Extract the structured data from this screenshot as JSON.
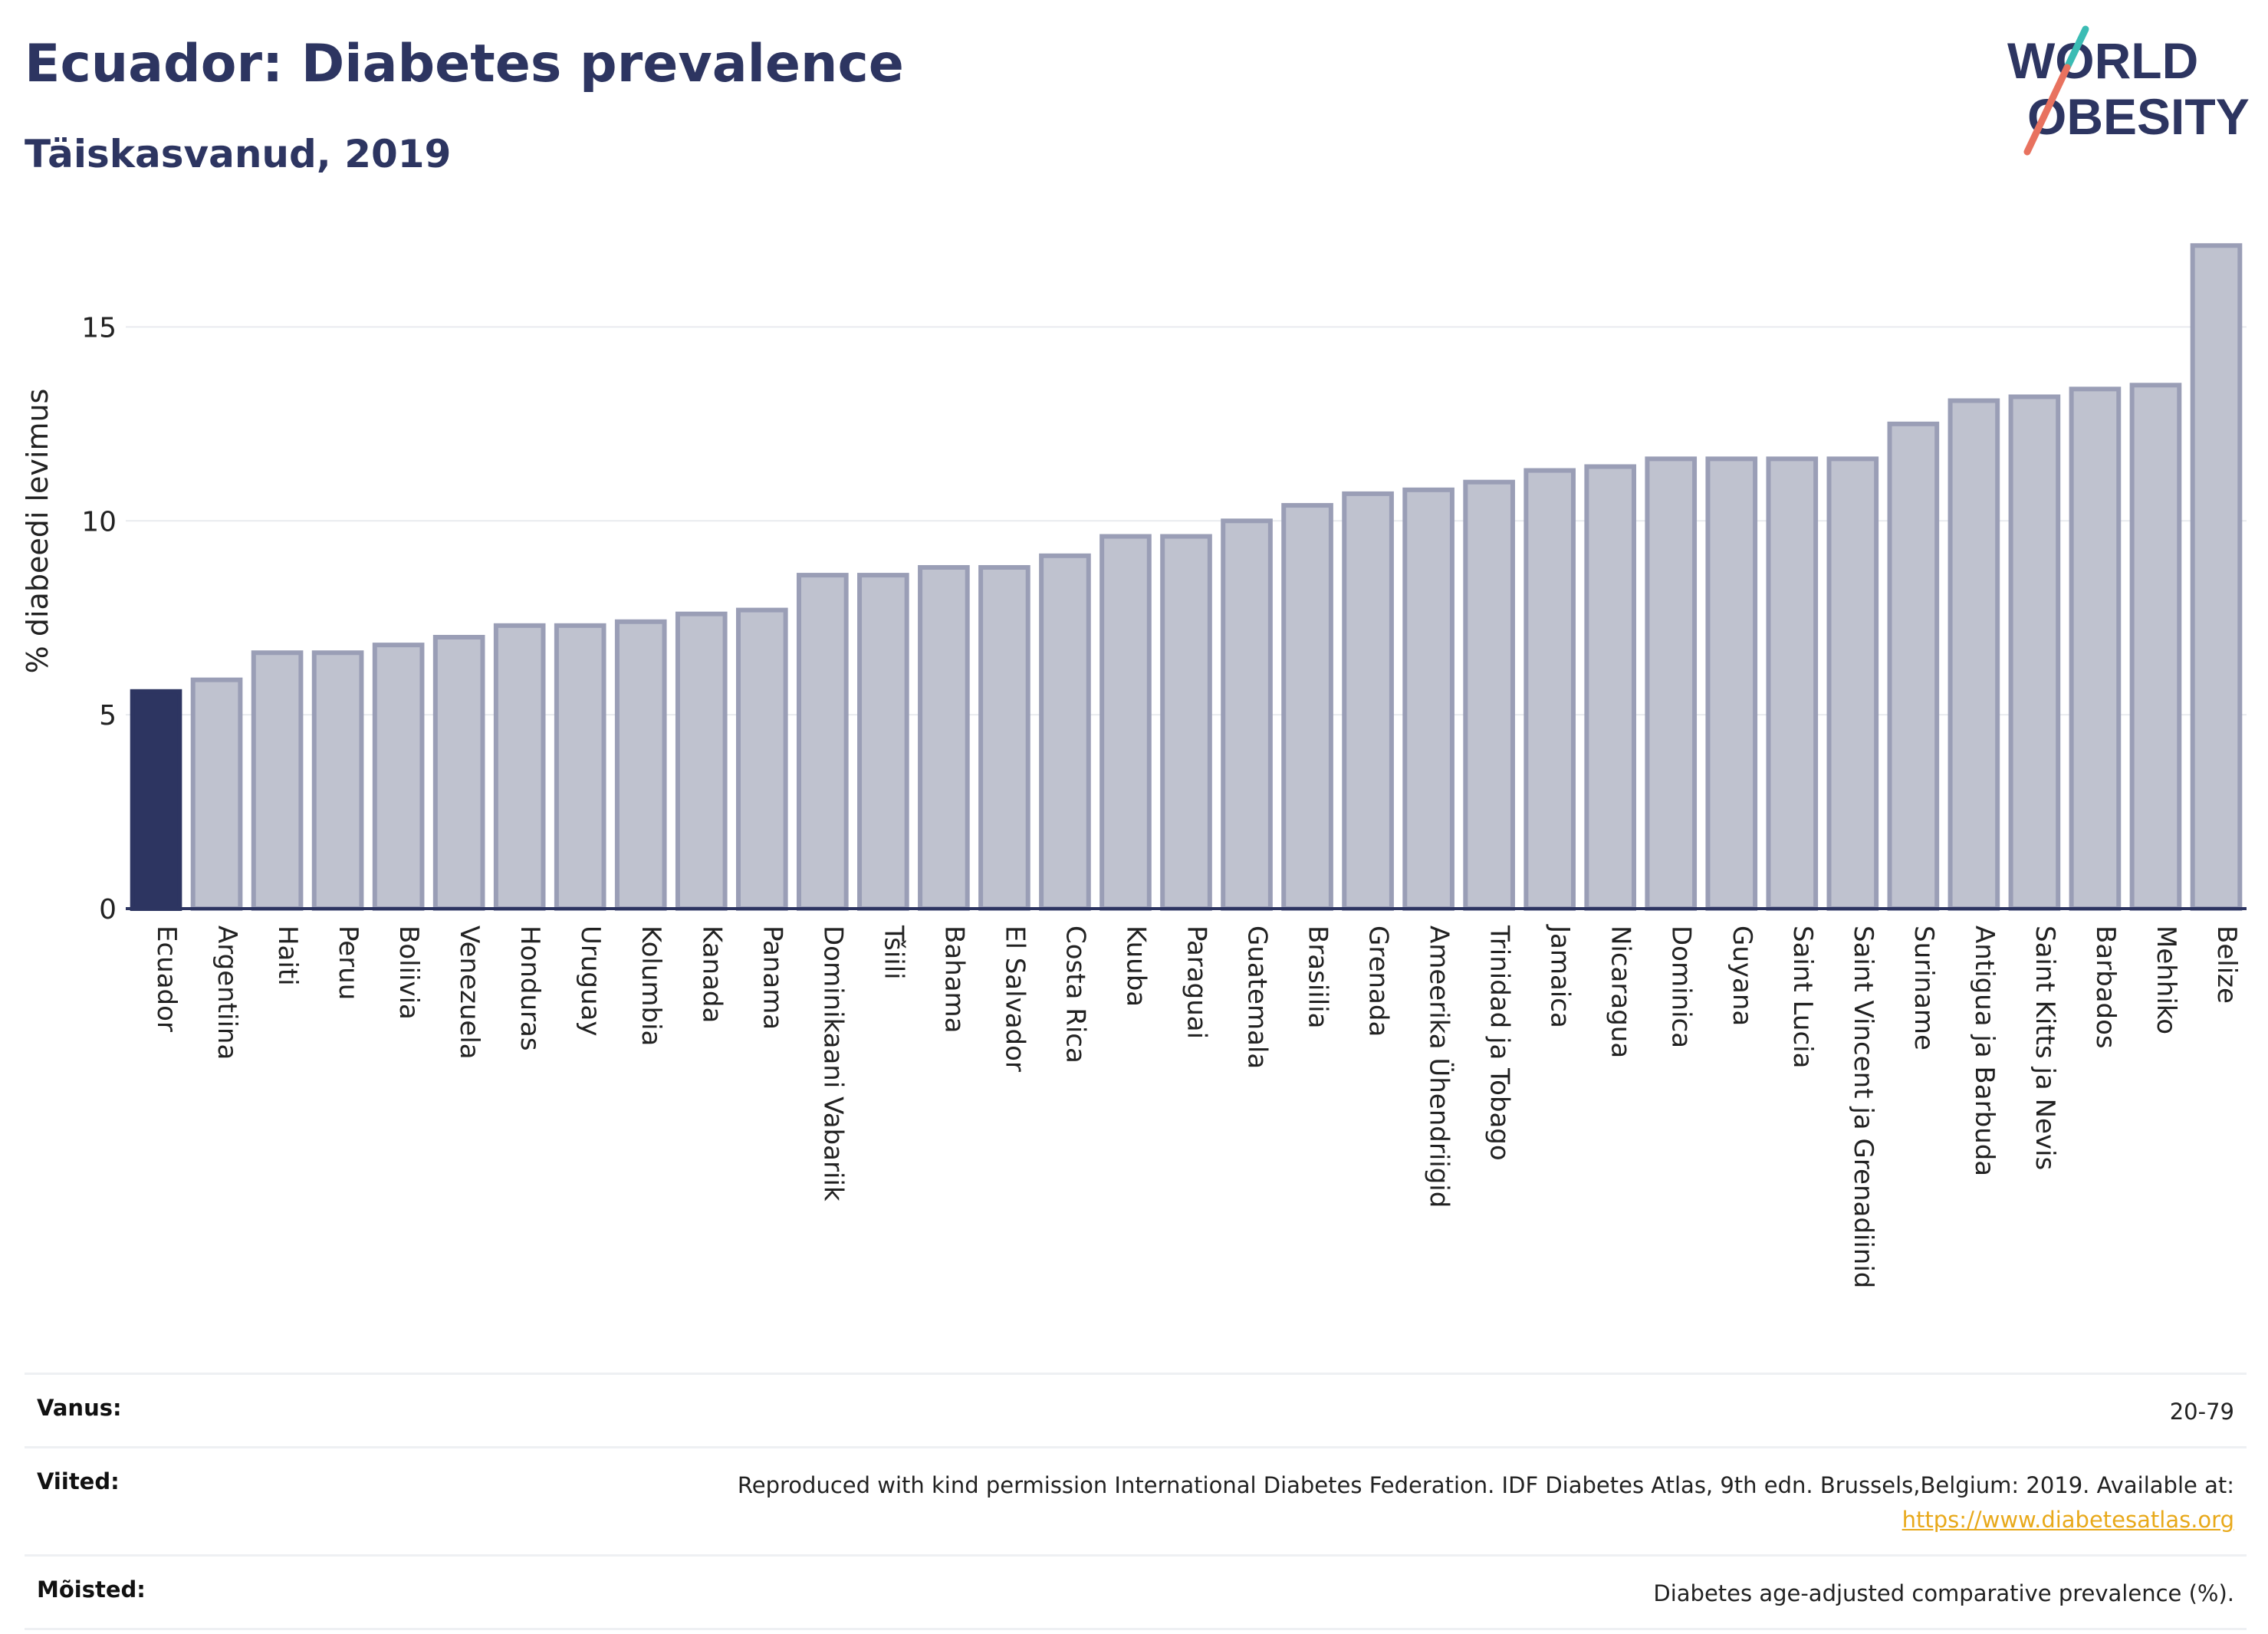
{
  "title": "Ecuador: Diabetes prevalence",
  "subtitle": "Täiskasvanud, 2019",
  "logo": {
    "line1": "WORLD",
    "line2": "OBESITY",
    "accent_colors": [
      "#3bbcb4",
      "#e8725f"
    ],
    "text_color": "#2d3561"
  },
  "chart_data": {
    "type": "bar",
    "ylabel": "% diabeedi levimus",
    "xlabel": "",
    "ylim": [
      0,
      17.5
    ],
    "yticks": [
      0,
      5,
      10,
      15
    ],
    "grid": true,
    "highlight_color": "#2d3561",
    "bar_color": "#bfc2cf",
    "bar_border_color": "#9a9eb6",
    "categories": [
      "Ecuador",
      "Argentiina",
      "Haiti",
      "Peruu",
      "Boliivia",
      "Venezuela",
      "Honduras",
      "Uruguay",
      "Kolumbia",
      "Kanada",
      "Panama",
      "Dominikaani Vabariik",
      "Tšiili",
      "Bahama",
      "El Salvador",
      "Costa Rica",
      "Kuuba",
      "Paraguai",
      "Guatemala",
      "Brasiilia",
      "Grenada",
      "Ameerika Ühendriigid",
      "Trinidad ja Tobago",
      "Jamaica",
      "Nicaragua",
      "Dominica",
      "Guyana",
      "Saint Lucia",
      "Saint Vincent ja Grenadiinid",
      "Suriname",
      "Antigua ja Barbuda",
      "Saint Kitts ja Nevis",
      "Barbados",
      "Mehhiko",
      "Belize"
    ],
    "values": [
      5.6,
      5.9,
      6.6,
      6.6,
      6.8,
      7.0,
      7.3,
      7.3,
      7.4,
      7.6,
      7.7,
      8.6,
      8.6,
      8.8,
      8.8,
      9.1,
      9.6,
      9.6,
      10.0,
      10.4,
      10.7,
      10.8,
      11.0,
      11.3,
      11.4,
      11.6,
      11.6,
      11.6,
      11.6,
      12.5,
      13.1,
      13.2,
      13.4,
      13.5,
      17.1
    ],
    "highlight_index": 0
  },
  "footer": {
    "age_label": "Vanus:",
    "age_value": "20-79",
    "refs_label": "Viited:",
    "refs_text": "Reproduced with kind permission International Diabetes Federation. IDF Diabetes Atlas, 9th edn. Brussels,Belgium: 2019. Available at:",
    "refs_link": "https://www.diabetesatlas.org",
    "defs_label": "Mõisted:",
    "defs_value": "Diabetes age-adjusted comparative prevalence (%)."
  }
}
